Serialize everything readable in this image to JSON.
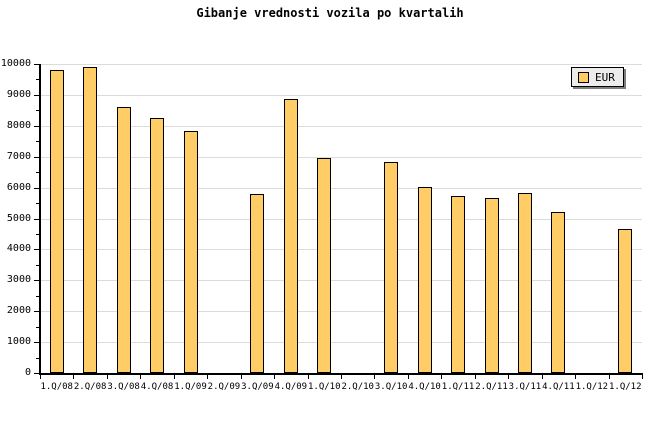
{
  "title": "Gibanje vrednosti vozila po kvartalih",
  "legend": {
    "label": "EUR",
    "position": "top-right"
  },
  "colors": {
    "bar_fill": "#FFCC66",
    "bar_border": "#000000",
    "gridline": "#DCDCDC",
    "axis": "#000000",
    "legend_bg": "#ECECEC",
    "legend_shadow": "#7F7F7F",
    "background": "#FFFFFF",
    "text": "#000000"
  },
  "chart_data": {
    "type": "bar",
    "title": "Gibanje vrednosti vozila po kvartalih",
    "xlabel": "",
    "ylabel": "",
    "ylim": [
      0,
      10000
    ],
    "y_major_step": 1000,
    "y_minor_step": 500,
    "grid": true,
    "legend_position": "top-right",
    "y_tick_labels": [
      "0",
      "1000",
      "2000",
      "3000",
      "4000",
      "5000",
      "6000",
      "7000",
      "8000",
      "9000",
      "10000"
    ],
    "categories": [
      "1.Q/08",
      "2.Q/08",
      "3.Q/08",
      "4.Q/08",
      "1.Q/09",
      "2.Q/09",
      "3.Q/09",
      "4.Q/09",
      "1.Q/10",
      "2.Q/10",
      "3.Q/10",
      "4.Q/10",
      "1.Q/11",
      "2.Q/11",
      "3.Q/11",
      "4.Q/11",
      "1.Q/12",
      "1.Q/12"
    ],
    "series": [
      {
        "name": "EUR",
        "values": [
          9820,
          9890,
          8610,
          8250,
          7820,
          null,
          5790,
          8880,
          6950,
          null,
          6840,
          6010,
          5730,
          5650,
          5840,
          5200,
          null,
          4650
        ]
      }
    ]
  }
}
